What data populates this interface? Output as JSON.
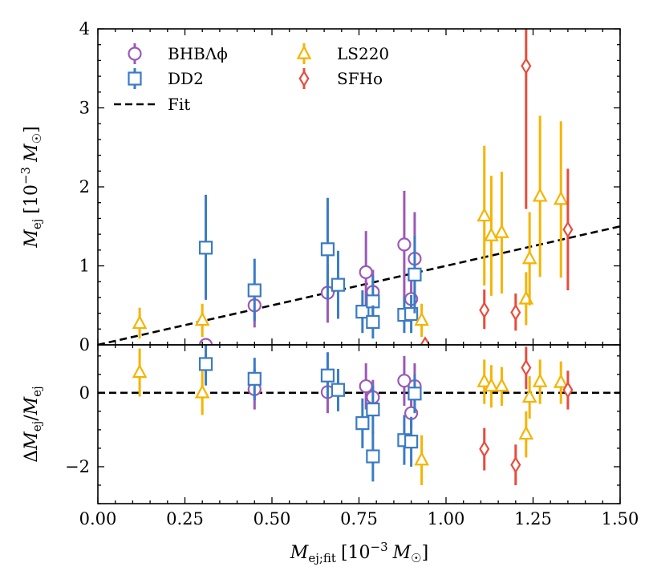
{
  "chart_data": {
    "type": "scatter",
    "xlabel": "M_ej;fit [10^-3 M_☉]",
    "xlabel_parts": {
      "main": "M",
      "sub": "ej;fit",
      "unit": "[10",
      "exp": "−3",
      "unit_tail": "M",
      "unit_sub": "☉",
      "close": "]"
    },
    "xlim": [
      0,
      1.5
    ],
    "xticks": [
      "0.00",
      "0.25",
      "0.50",
      "0.75",
      "1.00",
      "1.25",
      "1.50"
    ],
    "xtick_values": [
      0,
      0.25,
      0.5,
      0.75,
      1.0,
      1.25,
      1.5
    ],
    "top_panel": {
      "ylabel": "M_ej [10^-3 M_☉]",
      "ylabel_parts": {
        "main": "M",
        "sub": "ej",
        "unit": "[10",
        "exp": "−3",
        "unit_tail": "M",
        "unit_sub": "☉",
        "close": "]"
      },
      "ylim": [
        0,
        4
      ],
      "yticks": [
        "0",
        "1",
        "2",
        "3",
        "4"
      ],
      "ytick_values": [
        0,
        1,
        2,
        3,
        4
      ],
      "fit_line": {
        "slope": 1.0,
        "intercept": 0
      }
    },
    "bottom_panel": {
      "ylabel": "ΔM_ej / M_ej",
      "ylabel_parts": {
        "delta": "Δ",
        "main": "M",
        "sub": "ej",
        "slash": "/",
        "main2": "M",
        "sub2": "ej"
      },
      "ylim": [
        -3,
        1.3
      ],
      "yticks": [
        "−2",
        "0"
      ],
      "ytick_values": [
        -2,
        0
      ],
      "fit_line": {
        "value": 0
      }
    },
    "legend": [
      {
        "label": "BHBΛϕ",
        "series": "BHBLp"
      },
      {
        "label": "LS220",
        "series": "LS220"
      },
      {
        "label": "DD2",
        "series": "DD2"
      },
      {
        "label": "SFHo",
        "series": "SFHo"
      },
      {
        "label": "Fit",
        "series": "fit"
      }
    ],
    "series": [
      {
        "name": "BHBΛϕ",
        "key": "BHBLp",
        "marker": "circle",
        "color": "#9b59b6",
        "top": [
          {
            "x": 0.31,
            "y": 0.0,
            "lo": 0.0,
            "hi": 0.0
          },
          {
            "x": 0.45,
            "y": 0.5,
            "lo": 0.22,
            "hi": 0.78
          },
          {
            "x": 0.66,
            "y": 0.66,
            "lo": 0.28,
            "hi": 1.02
          },
          {
            "x": 0.77,
            "y": 0.92,
            "lo": 0.4,
            "hi": 1.44
          },
          {
            "x": 0.79,
            "y": 0.67,
            "lo": 0.38,
            "hi": 0.95
          },
          {
            "x": 0.88,
            "y": 1.27,
            "lo": 0.6,
            "hi": 1.95
          },
          {
            "x": 0.9,
            "y": 0.58,
            "lo": 0.35,
            "hi": 0.82
          },
          {
            "x": 0.91,
            "y": 1.09,
            "lo": 0.5,
            "hi": 1.68
          }
        ],
        "bottom": [
          {
            "x": 0.45,
            "y": 0.1,
            "lo": -0.45,
            "hi": 0.65
          },
          {
            "x": 0.66,
            "y": 0.02,
            "lo": -0.55,
            "hi": 0.6
          },
          {
            "x": 0.77,
            "y": 0.18,
            "lo": -0.45,
            "hi": 0.8
          },
          {
            "x": 0.79,
            "y": -0.12,
            "lo": -0.6,
            "hi": 0.35
          },
          {
            "x": 0.88,
            "y": 0.33,
            "lo": -0.35,
            "hi": 1.0
          },
          {
            "x": 0.9,
            "y": -0.55,
            "lo": -0.95,
            "hi": -0.15
          },
          {
            "x": 0.91,
            "y": 0.18,
            "lo": -0.45,
            "hi": 0.8
          }
        ]
      },
      {
        "name": "DD2",
        "key": "DD2",
        "marker": "square",
        "color": "#3a7bc4",
        "top": [
          {
            "x": 0.31,
            "y": 1.23,
            "lo": 0.57,
            "hi": 1.9
          },
          {
            "x": 0.45,
            "y": 0.69,
            "lo": 0.3,
            "hi": 1.09
          },
          {
            "x": 0.66,
            "y": 1.21,
            "lo": 0.57,
            "hi": 1.86
          },
          {
            "x": 0.69,
            "y": 0.76,
            "lo": 0.33,
            "hi": 1.19
          },
          {
            "x": 0.76,
            "y": 0.42,
            "lo": 0.15,
            "hi": 0.69
          },
          {
            "x": 0.79,
            "y": 0.55,
            "lo": 0.22,
            "hi": 0.88
          },
          {
            "x": 0.79,
            "y": 0.29,
            "lo": 0.08,
            "hi": 0.5
          },
          {
            "x": 0.88,
            "y": 0.38,
            "lo": 0.15,
            "hi": 0.61
          },
          {
            "x": 0.9,
            "y": 0.39,
            "lo": 0.15,
            "hi": 0.63
          },
          {
            "x": 0.91,
            "y": 0.89,
            "lo": 0.4,
            "hi": 1.38
          }
        ],
        "bottom": [
          {
            "x": 0.31,
            "y": 0.78,
            "lo": 0.2,
            "hi": 1.3
          },
          {
            "x": 0.45,
            "y": 0.38,
            "lo": -0.2,
            "hi": 0.95
          },
          {
            "x": 0.66,
            "y": 0.47,
            "lo": -0.15,
            "hi": 1.1
          },
          {
            "x": 0.69,
            "y": 0.08,
            "lo": -0.5,
            "hi": 0.65
          },
          {
            "x": 0.76,
            "y": -0.82,
            "lo": -1.5,
            "hi": -0.15
          },
          {
            "x": 0.79,
            "y": -0.45,
            "lo": -1.1,
            "hi": 0.2
          },
          {
            "x": 0.79,
            "y": -1.72,
            "lo": -2.4,
            "hi": -1.05
          },
          {
            "x": 0.88,
            "y": -1.28,
            "lo": -1.95,
            "hi": -0.6
          },
          {
            "x": 0.9,
            "y": -1.32,
            "lo": -2.0,
            "hi": -0.65
          },
          {
            "x": 0.91,
            "y": -0.02,
            "lo": -0.55,
            "hi": 0.5
          }
        ]
      },
      {
        "name": "LS220",
        "key": "LS220",
        "marker": "triangle",
        "color": "#f5b400",
        "top": [
          {
            "x": 0.12,
            "y": 0.27,
            "lo": 0.08,
            "hi": 0.47
          },
          {
            "x": 0.3,
            "y": 0.31,
            "lo": 0.1,
            "hi": 0.52
          },
          {
            "x": 0.93,
            "y": 0.31,
            "lo": 0.1,
            "hi": 0.52
          },
          {
            "x": 1.11,
            "y": 1.63,
            "lo": 0.75,
            "hi": 2.52
          },
          {
            "x": 1.13,
            "y": 1.38,
            "lo": 0.62,
            "hi": 2.14
          },
          {
            "x": 1.16,
            "y": 1.42,
            "lo": 0.65,
            "hi": 2.19
          },
          {
            "x": 1.23,
            "y": 0.58,
            "lo": 0.25,
            "hi": 0.92
          },
          {
            "x": 1.24,
            "y": 1.09,
            "lo": 0.5,
            "hi": 1.68
          },
          {
            "x": 1.27,
            "y": 1.88,
            "lo": 0.86,
            "hi": 2.9
          },
          {
            "x": 1.33,
            "y": 1.84,
            "lo": 0.85,
            "hi": 2.83
          }
        ],
        "bottom": [
          {
            "x": 0.12,
            "y": 0.55,
            "lo": -0.1,
            "hi": 1.2
          },
          {
            "x": 0.3,
            "y": 0.0,
            "lo": -0.6,
            "hi": 0.6
          },
          {
            "x": 0.93,
            "y": -1.82,
            "lo": -2.5,
            "hi": -1.15
          },
          {
            "x": 1.11,
            "y": 0.3,
            "lo": -0.3,
            "hi": 0.9
          },
          {
            "x": 1.13,
            "y": 0.18,
            "lo": -0.4,
            "hi": 0.75
          },
          {
            "x": 1.16,
            "y": 0.18,
            "lo": -0.35,
            "hi": 0.7
          },
          {
            "x": 1.23,
            "y": -1.12,
            "lo": -1.75,
            "hi": -0.5
          },
          {
            "x": 1.24,
            "y": -0.12,
            "lo": -0.7,
            "hi": 0.45
          },
          {
            "x": 1.27,
            "y": 0.3,
            "lo": -0.3,
            "hi": 0.9
          },
          {
            "x": 1.33,
            "y": 0.28,
            "lo": -0.3,
            "hi": 0.85
          }
        ]
      },
      {
        "name": "SFHo",
        "key": "SFHo",
        "marker": "diamond",
        "color": "#e74c3c",
        "top": [
          {
            "x": 0.94,
            "y": 0.0,
            "lo": 0.0,
            "hi": 0.0
          },
          {
            "x": 1.11,
            "y": 0.44,
            "lo": 0.2,
            "hi": 0.7
          },
          {
            "x": 1.2,
            "y": 0.41,
            "lo": 0.18,
            "hi": 0.65
          },
          {
            "x": 1.23,
            "y": 3.53,
            "lo": 1.72,
            "hi": 4.0
          },
          {
            "x": 1.35,
            "y": 1.46,
            "lo": 0.69,
            "hi": 2.23
          }
        ],
        "bottom": [
          {
            "x": 1.11,
            "y": -1.52,
            "lo": -2.1,
            "hi": -0.95
          },
          {
            "x": 1.2,
            "y": -1.95,
            "lo": -2.5,
            "hi": -1.4
          },
          {
            "x": 1.23,
            "y": 0.68,
            "lo": 0.1,
            "hi": 1.25
          },
          {
            "x": 1.35,
            "y": 0.08,
            "lo": -0.45,
            "hi": 0.6
          }
        ]
      }
    ]
  }
}
